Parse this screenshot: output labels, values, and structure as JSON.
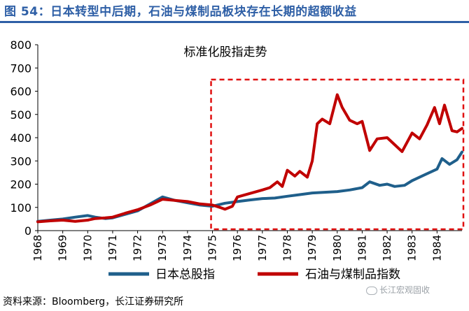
{
  "header": {
    "title": "图 54：日本转型中后期，石油与煤制品板块存在长期的超额收益"
  },
  "footer": {
    "source": "资料来源：Bloomberg，长江证券研究所",
    "watermark": "长江宏观固收"
  },
  "colors": {
    "title": "#2e5fa6",
    "series_japan": "#1f5f8b",
    "series_oil": "#c00000",
    "box": "#e01010"
  },
  "chart_data": {
    "type": "line",
    "title": "标准化股指走势",
    "xlabel": "",
    "ylabel": "",
    "ylim": [
      0,
      800
    ],
    "xlim": [
      1968,
      1985
    ],
    "yticks": [
      0,
      100,
      200,
      300,
      400,
      500,
      600,
      700,
      800
    ],
    "xticks": [
      "1968",
      "1969",
      "1970",
      "1971",
      "1972",
      "1973",
      "1974",
      "1975",
      "1976",
      "1977",
      "1978",
      "1979",
      "1980",
      "1981",
      "1982",
      "1983",
      "1984"
    ],
    "grid": false,
    "legend_position": "bottom",
    "highlight_range": {
      "x": [
        1975,
        1985
      ],
      "y": [
        0,
        650
      ],
      "style": "dashed"
    },
    "series": [
      {
        "name": "日本总股指",
        "color": "#1f5f8b",
        "x": [
          1968.0,
          1968.5,
          1969.0,
          1969.5,
          1970.0,
          1970.3,
          1970.7,
          1971.0,
          1971.5,
          1972.0,
          1972.5,
          1973.0,
          1973.5,
          1974.0,
          1974.5,
          1975.0,
          1975.5,
          1976.0,
          1976.5,
          1977.0,
          1977.5,
          1978.0,
          1978.5,
          1979.0,
          1979.5,
          1980.0,
          1980.5,
          1981.0,
          1981.3,
          1981.7,
          1982.0,
          1982.3,
          1982.7,
          1983.0,
          1983.5,
          1984.0,
          1984.2,
          1984.5,
          1984.8,
          1985.0
        ],
        "values": [
          40,
          45,
          50,
          58,
          65,
          58,
          52,
          55,
          70,
          85,
          115,
          145,
          130,
          120,
          110,
          105,
          118,
          125,
          132,
          138,
          140,
          148,
          155,
          162,
          165,
          168,
          175,
          185,
          210,
          195,
          200,
          190,
          195,
          215,
          240,
          265,
          310,
          285,
          305,
          338
        ]
      },
      {
        "name": "石油与煤制品指数",
        "color": "#c00000",
        "x": [
          1968.0,
          1968.5,
          1969.0,
          1969.5,
          1970.0,
          1970.3,
          1970.7,
          1971.0,
          1971.5,
          1972.0,
          1972.5,
          1973.0,
          1973.5,
          1974.0,
          1974.5,
          1975.0,
          1975.3,
          1975.5,
          1975.8,
          1976.0,
          1976.5,
          1977.0,
          1977.3,
          1977.6,
          1977.8,
          1978.0,
          1978.3,
          1978.5,
          1978.8,
          1979.0,
          1979.2,
          1979.4,
          1979.7,
          1980.0,
          1980.2,
          1980.5,
          1980.8,
          1981.0,
          1981.3,
          1981.6,
          1982.0,
          1982.3,
          1982.6,
          1983.0,
          1983.3,
          1983.6,
          1983.9,
          1984.1,
          1984.3,
          1984.6,
          1984.8,
          1985.0
        ],
        "values": [
          38,
          42,
          45,
          40,
          45,
          52,
          55,
          58,
          75,
          90,
          110,
          135,
          130,
          125,
          115,
          110,
          100,
          92,
          105,
          145,
          160,
          175,
          185,
          210,
          190,
          260,
          235,
          255,
          230,
          300,
          460,
          480,
          460,
          585,
          530,
          475,
          460,
          470,
          345,
          395,
          400,
          370,
          340,
          420,
          395,
          455,
          530,
          460,
          540,
          430,
          425,
          440
        ]
      }
    ]
  }
}
